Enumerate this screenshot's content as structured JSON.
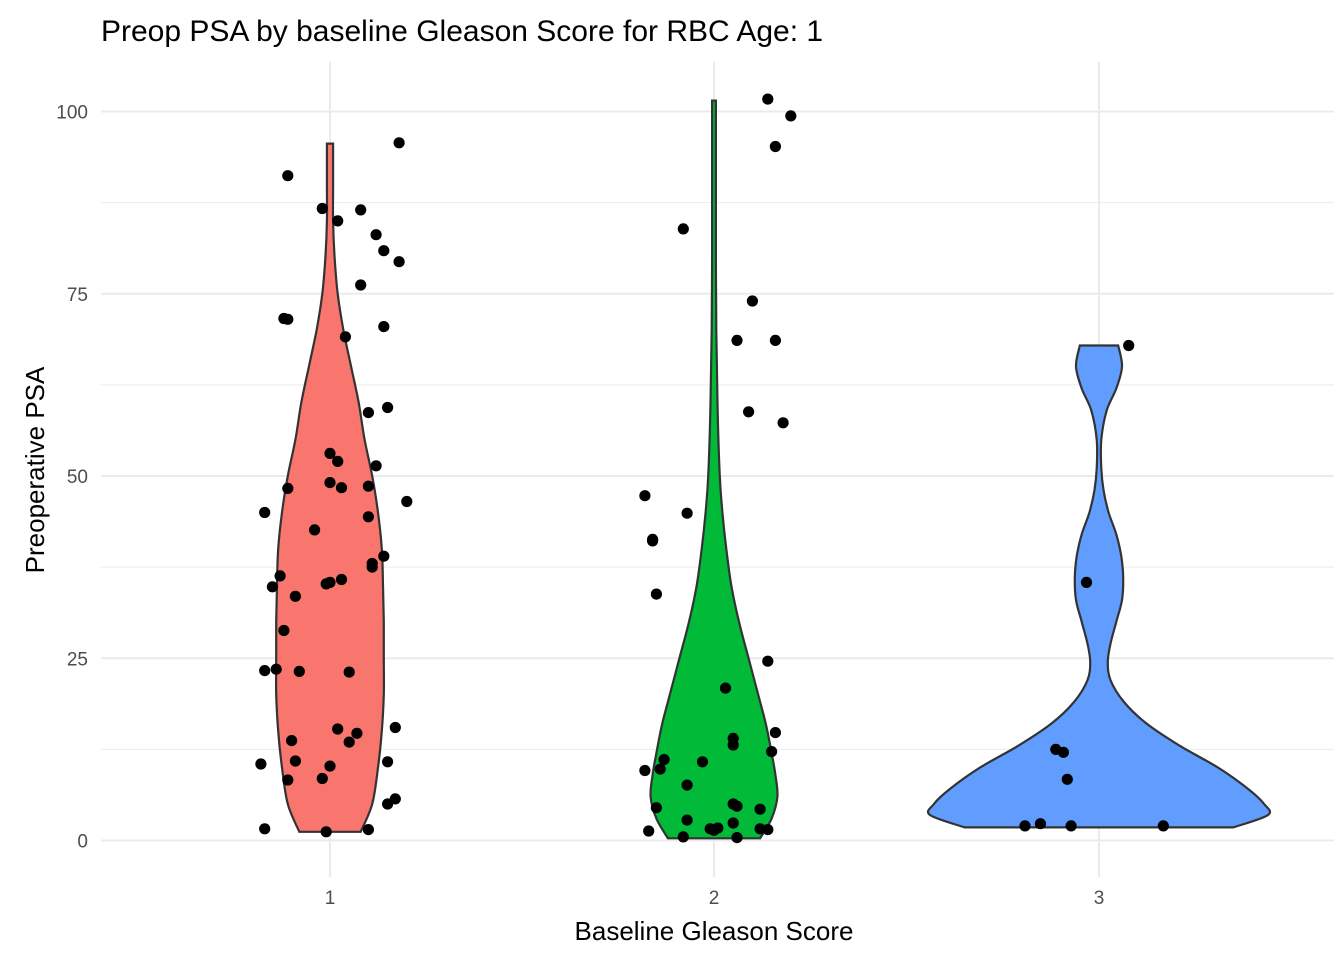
{
  "chart_data": {
    "type": "violin",
    "title": "Preop PSA by baseline Gleason Score for RBC Age: 1",
    "xlabel": "Baseline Gleason Score",
    "ylabel": "Preoperative PSA",
    "categories": [
      "1",
      "2",
      "3"
    ],
    "ylim": [
      -6.5,
      106
    ],
    "yticks": [
      0,
      25,
      50,
      75,
      100
    ],
    "grid": true,
    "legend": "none",
    "colors": [
      "#F8766D",
      "#00BA38",
      "#619CFF"
    ],
    "violins": [
      {
        "category": "1",
        "min": 1.2,
        "max": 95.6,
        "profile": [
          [
            1.2,
            0.08
          ],
          [
            5,
            0.11
          ],
          [
            10,
            0.125
          ],
          [
            15,
            0.135
          ],
          [
            20,
            0.14
          ],
          [
            25,
            0.14
          ],
          [
            30,
            0.14
          ],
          [
            35,
            0.138
          ],
          [
            40,
            0.135
          ],
          [
            45,
            0.125
          ],
          [
            50,
            0.11
          ],
          [
            55,
            0.09
          ],
          [
            60,
            0.075
          ],
          [
            65,
            0.055
          ],
          [
            70,
            0.035
          ],
          [
            75,
            0.02
          ],
          [
            80,
            0.012
          ],
          [
            85,
            0.008
          ],
          [
            90,
            0.008
          ],
          [
            95.6,
            0.008
          ]
        ]
      },
      {
        "category": "2",
        "min": 0.3,
        "max": 101.5,
        "profile": [
          [
            0.3,
            0.12
          ],
          [
            3,
            0.15
          ],
          [
            6,
            0.165
          ],
          [
            9,
            0.16
          ],
          [
            12,
            0.15
          ],
          [
            16,
            0.135
          ],
          [
            20,
            0.115
          ],
          [
            25,
            0.09
          ],
          [
            30,
            0.065
          ],
          [
            35,
            0.045
          ],
          [
            40,
            0.032
          ],
          [
            45,
            0.022
          ],
          [
            50,
            0.015
          ],
          [
            60,
            0.009
          ],
          [
            70,
            0.006
          ],
          [
            80,
            0.005
          ],
          [
            90,
            0.005
          ],
          [
            101.5,
            0.005
          ]
        ]
      },
      {
        "category": "3",
        "min": 1.8,
        "max": 67.9,
        "profile": [
          [
            1.8,
            0.35
          ],
          [
            3.5,
            0.44
          ],
          [
            5,
            0.43
          ],
          [
            7,
            0.39
          ],
          [
            10,
            0.31
          ],
          [
            13,
            0.21
          ],
          [
            16,
            0.125
          ],
          [
            19,
            0.065
          ],
          [
            22,
            0.03
          ],
          [
            24.5,
            0.023
          ],
          [
            27,
            0.03
          ],
          [
            30,
            0.045
          ],
          [
            33,
            0.06
          ],
          [
            36,
            0.063
          ],
          [
            39,
            0.058
          ],
          [
            42,
            0.045
          ],
          [
            45,
            0.025
          ],
          [
            48,
            0.012
          ],
          [
            51,
            0.006
          ],
          [
            55,
            0.006
          ],
          [
            59,
            0.02
          ],
          [
            62,
            0.045
          ],
          [
            65,
            0.06
          ],
          [
            67.9,
            0.05
          ]
        ]
      }
    ],
    "points": [
      {
        "x": 0.83,
        "y": 45.0
      },
      {
        "x": 0.85,
        "y": 34.8
      },
      {
        "x": 0.87,
        "y": 36.3
      },
      {
        "x": 0.83,
        "y": 23.3
      },
      {
        "x": 0.86,
        "y": 23.5
      },
      {
        "x": 0.82,
        "y": 10.5
      },
      {
        "x": 0.83,
        "y": 1.6
      },
      {
        "x": 0.89,
        "y": 8.3
      },
      {
        "x": 0.89,
        "y": 91.2
      },
      {
        "x": 0.88,
        "y": 71.6
      },
      {
        "x": 0.89,
        "y": 71.5
      },
      {
        "x": 0.88,
        "y": 28.8
      },
      {
        "x": 0.89,
        "y": 48.3
      },
      {
        "x": 0.91,
        "y": 33.5
      },
      {
        "x": 0.9,
        "y": 13.7
      },
      {
        "x": 0.91,
        "y": 10.9
      },
      {
        "x": 0.92,
        "y": 23.2
      },
      {
        "x": 0.96,
        "y": 42.6
      },
      {
        "x": 0.98,
        "y": 86.7
      },
      {
        "x": 1.02,
        "y": 85.0
      },
      {
        "x": 0.99,
        "y": 35.2
      },
      {
        "x": 1.0,
        "y": 35.4
      },
      {
        "x": 1.0,
        "y": 53.1
      },
      {
        "x": 1.0,
        "y": 49.1
      },
      {
        "x": 1.02,
        "y": 52.0
      },
      {
        "x": 1.03,
        "y": 48.4
      },
      {
        "x": 1.03,
        "y": 35.8
      },
      {
        "x": 0.98,
        "y": 8.5
      },
      {
        "x": 0.99,
        "y": 1.2
      },
      {
        "x": 1.0,
        "y": 10.2
      },
      {
        "x": 1.02,
        "y": 15.3
      },
      {
        "x": 1.04,
        "y": 69.1
      },
      {
        "x": 1.05,
        "y": 23.1
      },
      {
        "x": 1.05,
        "y": 13.5
      },
      {
        "x": 1.07,
        "y": 14.7
      },
      {
        "x": 1.08,
        "y": 86.5
      },
      {
        "x": 1.08,
        "y": 76.2
      },
      {
        "x": 1.1,
        "y": 58.7
      },
      {
        "x": 1.1,
        "y": 48.6
      },
      {
        "x": 1.1,
        "y": 44.4
      },
      {
        "x": 1.11,
        "y": 37.5
      },
      {
        "x": 1.11,
        "y": 38.0
      },
      {
        "x": 1.12,
        "y": 83.1
      },
      {
        "x": 1.12,
        "y": 51.4
      },
      {
        "x": 1.1,
        "y": 1.5
      },
      {
        "x": 1.14,
        "y": 80.9
      },
      {
        "x": 1.14,
        "y": 70.5
      },
      {
        "x": 1.14,
        "y": 39.0
      },
      {
        "x": 1.15,
        "y": 59.4
      },
      {
        "x": 1.15,
        "y": 10.8
      },
      {
        "x": 1.15,
        "y": 5.0
      },
      {
        "x": 1.17,
        "y": 5.7
      },
      {
        "x": 1.17,
        "y": 15.5
      },
      {
        "x": 1.18,
        "y": 79.4
      },
      {
        "x": 1.18,
        "y": 95.7
      },
      {
        "x": 1.2,
        "y": 46.5
      },
      {
        "x": 1.82,
        "y": 47.3
      },
      {
        "x": 1.82,
        "y": 9.6
      },
      {
        "x": 1.83,
        "y": 1.3
      },
      {
        "x": 1.84,
        "y": 41.1
      },
      {
        "x": 1.84,
        "y": 41.3
      },
      {
        "x": 1.85,
        "y": 33.8
      },
      {
        "x": 1.85,
        "y": 4.5
      },
      {
        "x": 1.86,
        "y": 9.8
      },
      {
        "x": 1.87,
        "y": 11.1
      },
      {
        "x": 1.92,
        "y": 83.9
      },
      {
        "x": 1.93,
        "y": 44.9
      },
      {
        "x": 1.93,
        "y": 7.6
      },
      {
        "x": 1.93,
        "y": 2.8
      },
      {
        "x": 1.92,
        "y": 0.5
      },
      {
        "x": 1.97,
        "y": 10.8
      },
      {
        "x": 1.99,
        "y": 1.6
      },
      {
        "x": 2.0,
        "y": 1.4
      },
      {
        "x": 2.01,
        "y": 1.7
      },
      {
        "x": 2.03,
        "y": 20.9
      },
      {
        "x": 2.05,
        "y": 14.0
      },
      {
        "x": 2.05,
        "y": 13.1
      },
      {
        "x": 2.05,
        "y": 5.0
      },
      {
        "x": 2.06,
        "y": 4.7
      },
      {
        "x": 2.05,
        "y": 2.4
      },
      {
        "x": 2.06,
        "y": 0.4
      },
      {
        "x": 2.06,
        "y": 68.6
      },
      {
        "x": 2.09,
        "y": 58.8
      },
      {
        "x": 2.1,
        "y": 74.0
      },
      {
        "x": 2.12,
        "y": 4.3
      },
      {
        "x": 2.12,
        "y": 1.6
      },
      {
        "x": 2.14,
        "y": 1.5
      },
      {
        "x": 2.14,
        "y": 24.6
      },
      {
        "x": 2.15,
        "y": 12.2
      },
      {
        "x": 2.16,
        "y": 14.8
      },
      {
        "x": 2.14,
        "y": 101.7
      },
      {
        "x": 2.16,
        "y": 95.2
      },
      {
        "x": 2.16,
        "y": 68.6
      },
      {
        "x": 2.18,
        "y": 57.3
      },
      {
        "x": 2.2,
        "y": 99.4
      },
      {
        "x": 2.81,
        "y": 2.0
      },
      {
        "x": 2.85,
        "y": 2.3
      },
      {
        "x": 2.89,
        "y": 12.5
      },
      {
        "x": 2.91,
        "y": 12.1
      },
      {
        "x": 2.92,
        "y": 8.4
      },
      {
        "x": 2.93,
        "y": 2.0
      },
      {
        "x": 2.97,
        "y": 35.4
      },
      {
        "x": 3.08,
        "y": 67.9
      },
      {
        "x": 3.17,
        "y": 2.0
      }
    ]
  }
}
